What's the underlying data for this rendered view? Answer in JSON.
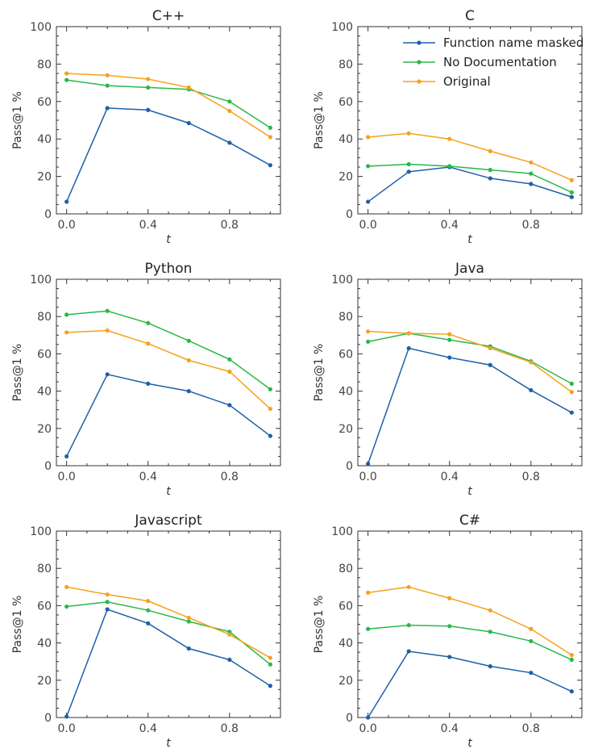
{
  "chart_data": [
    {
      "type": "line",
      "title": "C++",
      "xlabel": "t",
      "ylabel": "Pass@1 %",
      "x": [
        0.0,
        0.2,
        0.4,
        0.6,
        0.8,
        1.0
      ],
      "xlim": [
        -0.05,
        1.05
      ],
      "ylim": [
        0,
        100
      ],
      "xticks": [
        "0.0",
        "0.4",
        "0.8"
      ],
      "yticks": [
        "0",
        "20",
        "40",
        "60",
        "80",
        "100"
      ],
      "series": [
        {
          "name": "Function name masked",
          "color": "#1f5fa8",
          "values": [
            6.5,
            56.5,
            55.5,
            48.5,
            38,
            26
          ]
        },
        {
          "name": "No Documentation",
          "color": "#2ab84a",
          "values": [
            71.5,
            68.5,
            67.5,
            66.5,
            60,
            46
          ]
        },
        {
          "name": "Original",
          "color": "#f5a21b",
          "values": [
            75,
            74,
            72,
            67.5,
            55,
            41
          ]
        }
      ]
    },
    {
      "type": "line",
      "title": "C",
      "xlabel": "t",
      "ylabel": "Pass@1 %",
      "x": [
        0.0,
        0.2,
        0.4,
        0.6,
        0.8,
        1.0
      ],
      "xlim": [
        -0.05,
        1.05
      ],
      "ylim": [
        0,
        100
      ],
      "xticks": [
        "0.0",
        "0.4",
        "0.8"
      ],
      "yticks": [
        "0",
        "20",
        "40",
        "60",
        "80",
        "100"
      ],
      "legend_position": "top-right",
      "series": [
        {
          "name": "Function name masked",
          "color": "#1f5fa8",
          "values": [
            6.5,
            22.5,
            25,
            19,
            16,
            9
          ]
        },
        {
          "name": "No Documentation",
          "color": "#2ab84a",
          "values": [
            25.5,
            26.5,
            25.5,
            23.5,
            21.5,
            11.5
          ]
        },
        {
          "name": "Original",
          "color": "#f5a21b",
          "values": [
            41,
            43,
            40,
            33.5,
            27.5,
            18
          ]
        }
      ]
    },
    {
      "type": "line",
      "title": "Python",
      "xlabel": "t",
      "ylabel": "Pass@1 %",
      "x": [
        0.0,
        0.2,
        0.4,
        0.6,
        0.8,
        1.0
      ],
      "xlim": [
        -0.05,
        1.05
      ],
      "ylim": [
        0,
        100
      ],
      "xticks": [
        "0.0",
        "0.4",
        "0.8"
      ],
      "yticks": [
        "0",
        "20",
        "40",
        "60",
        "80",
        "100"
      ],
      "series": [
        {
          "name": "Function name masked",
          "color": "#1f5fa8",
          "values": [
            5,
            49,
            44,
            40,
            32.5,
            16
          ]
        },
        {
          "name": "No Documentation",
          "color": "#2ab84a",
          "values": [
            81,
            83,
            76.5,
            67,
            57,
            41
          ]
        },
        {
          "name": "Original",
          "color": "#f5a21b",
          "values": [
            71.5,
            72.5,
            65.5,
            56.5,
            50.5,
            30.5
          ]
        }
      ]
    },
    {
      "type": "line",
      "title": "Java",
      "xlabel": "t",
      "ylabel": "Pass@1 %",
      "x": [
        0.0,
        0.2,
        0.4,
        0.6,
        0.8,
        1.0
      ],
      "xlim": [
        -0.05,
        1.05
      ],
      "ylim": [
        0,
        100
      ],
      "xticks": [
        "0.0",
        "0.4",
        "0.8"
      ],
      "yticks": [
        "0",
        "20",
        "40",
        "60",
        "80",
        "100"
      ],
      "series": [
        {
          "name": "Function name masked",
          "color": "#1f5fa8",
          "values": [
            1,
            63,
            58,
            54,
            40.5,
            28.5
          ]
        },
        {
          "name": "No Documentation",
          "color": "#2ab84a",
          "values": [
            66.5,
            71,
            67.5,
            64,
            56,
            44
          ]
        },
        {
          "name": "Original",
          "color": "#f5a21b",
          "values": [
            72,
            71,
            70.5,
            63,
            55.5,
            39.5
          ]
        }
      ]
    },
    {
      "type": "line",
      "title": "Javascript",
      "xlabel": "t",
      "ylabel": "Pass@1 %",
      "x": [
        0.0,
        0.2,
        0.4,
        0.6,
        0.8,
        1.0
      ],
      "xlim": [
        -0.05,
        1.05
      ],
      "ylim": [
        0,
        100
      ],
      "xticks": [
        "0.0",
        "0.4",
        "0.8"
      ],
      "yticks": [
        "0",
        "20",
        "40",
        "60",
        "80",
        "100"
      ],
      "series": [
        {
          "name": "Function name masked",
          "color": "#1f5fa8",
          "values": [
            0.5,
            58,
            50.5,
            37,
            31,
            17
          ]
        },
        {
          "name": "No Documentation",
          "color": "#2ab84a",
          "values": [
            59.5,
            62,
            57.5,
            51.5,
            46,
            28.5
          ]
        },
        {
          "name": "Original",
          "color": "#f5a21b",
          "values": [
            70,
            66,
            62.5,
            53.5,
            44.5,
            32
          ]
        }
      ]
    },
    {
      "type": "line",
      "title": "C#",
      "xlabel": "t",
      "ylabel": "Pass@1 %",
      "x": [
        0.0,
        0.2,
        0.4,
        0.6,
        0.8,
        1.0
      ],
      "xlim": [
        -0.05,
        1.05
      ],
      "ylim": [
        0,
        100
      ],
      "xticks": [
        "0.0",
        "0.4",
        "0.8"
      ],
      "yticks": [
        "0",
        "20",
        "40",
        "60",
        "80",
        "100"
      ],
      "series": [
        {
          "name": "Function name masked",
          "color": "#1f5fa8",
          "values": [
            0,
            35.5,
            32.5,
            27.5,
            24,
            14
          ]
        },
        {
          "name": "No Documentation",
          "color": "#2ab84a",
          "values": [
            47.5,
            49.5,
            49,
            46,
            41,
            31
          ]
        },
        {
          "name": "Original",
          "color": "#f5a21b",
          "values": [
            67,
            70,
            64,
            57.5,
            47.5,
            33.5
          ]
        }
      ]
    }
  ]
}
